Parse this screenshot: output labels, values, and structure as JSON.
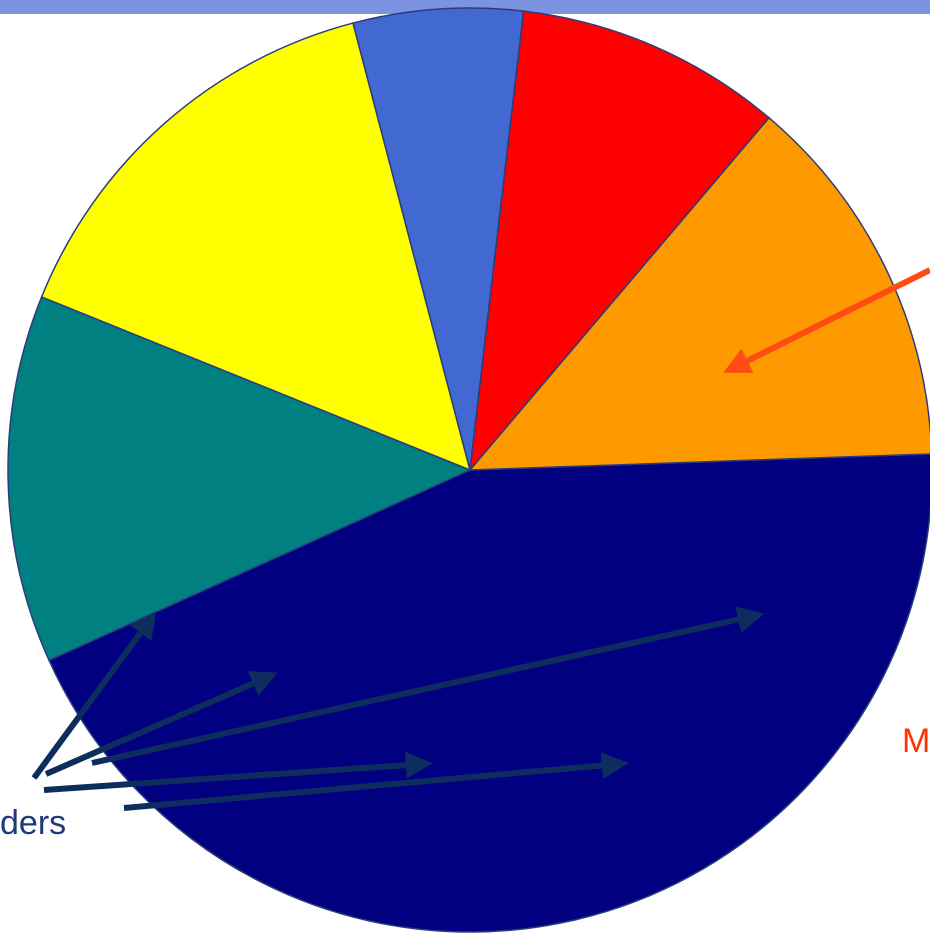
{
  "colors": {
    "band": "#7b93e0",
    "outline": "#2a3d7a",
    "arrow_dark": "#0d2d5e",
    "arrow_red": "#ff4a14",
    "label_left": "#1f3a7a",
    "label_right": "#ff3300"
  },
  "labels": {
    "left": "ders",
    "right": "M"
  },
  "chart_data": {
    "type": "pie",
    "title": "",
    "slices": [
      {
        "value": 47.3,
        "color": "#000080",
        "icon": "navy"
      },
      {
        "value": 13.9,
        "color": "#008080",
        "icon": "teal"
      },
      {
        "value": 16.0,
        "color": "#ffff00",
        "icon": "yellow"
      },
      {
        "value": 6.4,
        "color": "#4169d1",
        "icon": "blue"
      },
      {
        "value": 10.1,
        "color": "#ff0000",
        "icon": "red"
      },
      {
        "value": 14.3,
        "color": "#ff9900",
        "icon": "orange"
      }
    ],
    "start_clock_deg": 88.0,
    "clockwise": true
  }
}
